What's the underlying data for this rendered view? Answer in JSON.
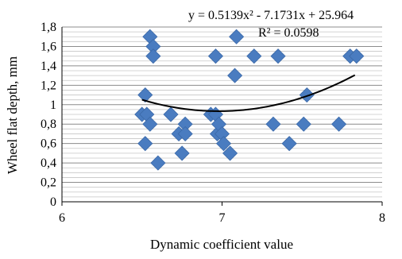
{
  "chart_data": {
    "type": "scatter",
    "xlabel": "Dynamic coefficient value",
    "ylabel": "Wheel flat depth,  mm",
    "xlim": [
      6,
      8
    ],
    "ylim": [
      0,
      1.8
    ],
    "x_ticks": [
      "6",
      "7",
      "8"
    ],
    "y_ticks": [
      "0",
      "0,2",
      "0,4",
      "0,6",
      "0,8",
      "1",
      "1,2",
      "1,4",
      "1,6",
      "1,8"
    ],
    "grid": true,
    "marker": "diamond",
    "marker_color": "#4a7cc0",
    "trendline": {
      "type": "polynomial",
      "coefficients": [
        0.5139,
        -7.1731,
        25.964
      ],
      "x_range": [
        6.5,
        7.83
      ],
      "color": "#000000"
    },
    "annotations": {
      "equation": "y = 0.5139x² - 7.1731x + 25.964",
      "r_squared": "R² = 0.0598"
    },
    "points": [
      {
        "x": 6.5,
        "y": 0.9
      },
      {
        "x": 6.52,
        "y": 1.1
      },
      {
        "x": 6.53,
        "y": 0.9
      },
      {
        "x": 6.52,
        "y": 0.6
      },
      {
        "x": 6.55,
        "y": 0.8
      },
      {
        "x": 6.55,
        "y": 1.7
      },
      {
        "x": 6.57,
        "y": 1.6
      },
      {
        "x": 6.57,
        "y": 1.5
      },
      {
        "x": 6.6,
        "y": 0.4
      },
      {
        "x": 6.68,
        "y": 0.9
      },
      {
        "x": 6.73,
        "y": 0.7
      },
      {
        "x": 6.75,
        "y": 0.5
      },
      {
        "x": 6.77,
        "y": 0.8
      },
      {
        "x": 6.77,
        "y": 0.7
      },
      {
        "x": 6.93,
        "y": 0.9
      },
      {
        "x": 6.96,
        "y": 0.9
      },
      {
        "x": 6.96,
        "y": 1.5
      },
      {
        "x": 6.97,
        "y": 0.7
      },
      {
        "x": 6.98,
        "y": 0.8
      },
      {
        "x": 7.0,
        "y": 0.7
      },
      {
        "x": 7.01,
        "y": 0.6
      },
      {
        "x": 7.05,
        "y": 0.5
      },
      {
        "x": 7.08,
        "y": 1.3
      },
      {
        "x": 7.09,
        "y": 1.7
      },
      {
        "x": 7.2,
        "y": 1.5
      },
      {
        "x": 7.32,
        "y": 0.8
      },
      {
        "x": 7.35,
        "y": 1.5
      },
      {
        "x": 7.42,
        "y": 0.6
      },
      {
        "x": 7.51,
        "y": 0.8
      },
      {
        "x": 7.53,
        "y": 1.1
      },
      {
        "x": 7.73,
        "y": 0.8
      },
      {
        "x": 7.8,
        "y": 1.5
      },
      {
        "x": 7.84,
        "y": 1.5
      }
    ]
  }
}
